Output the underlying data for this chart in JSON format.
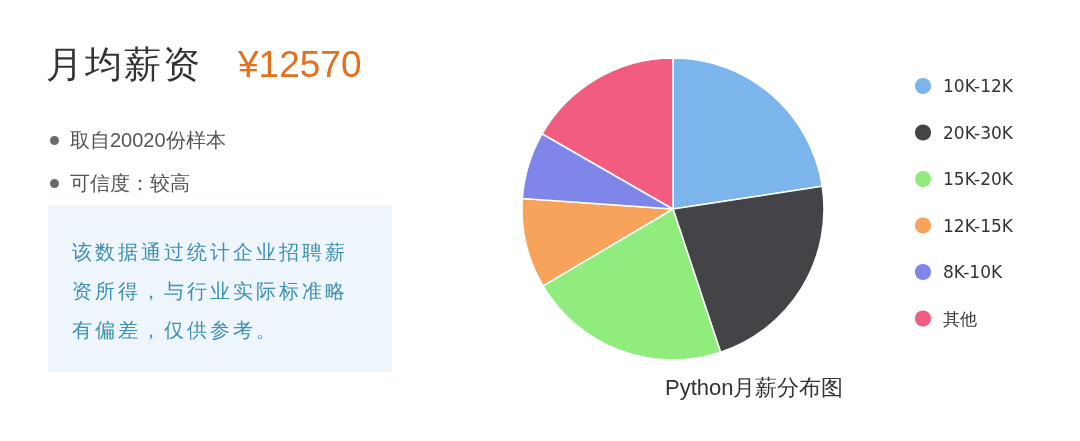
{
  "chart_data": [
    {
      "type": "other",
      "title": "月均薪资",
      "subtitle": "¥12570",
      "annotations": [
        "取自20020份样本",
        "可信度：较高",
        "该数据通过统计企业招聘薪资所得，与行业实际标准略有偏差，仅供参考。"
      ]
    },
    {
      "type": "pie",
      "title": "Python月薪分布图",
      "categories": [
        "10K-12K",
        "20K-30K",
        "15K-20K",
        "12K-15K",
        "8K-10K",
        "其他"
      ],
      "values": [
        22.6,
        22.3,
        21.6,
        9.6,
        7.2,
        16.7
      ],
      "colors": [
        "#7cb5ec",
        "#434348",
        "#90ed7d",
        "#f7a35c",
        "#8085e9",
        "#f15c80"
      ],
      "legend": "right"
    }
  ]
}
